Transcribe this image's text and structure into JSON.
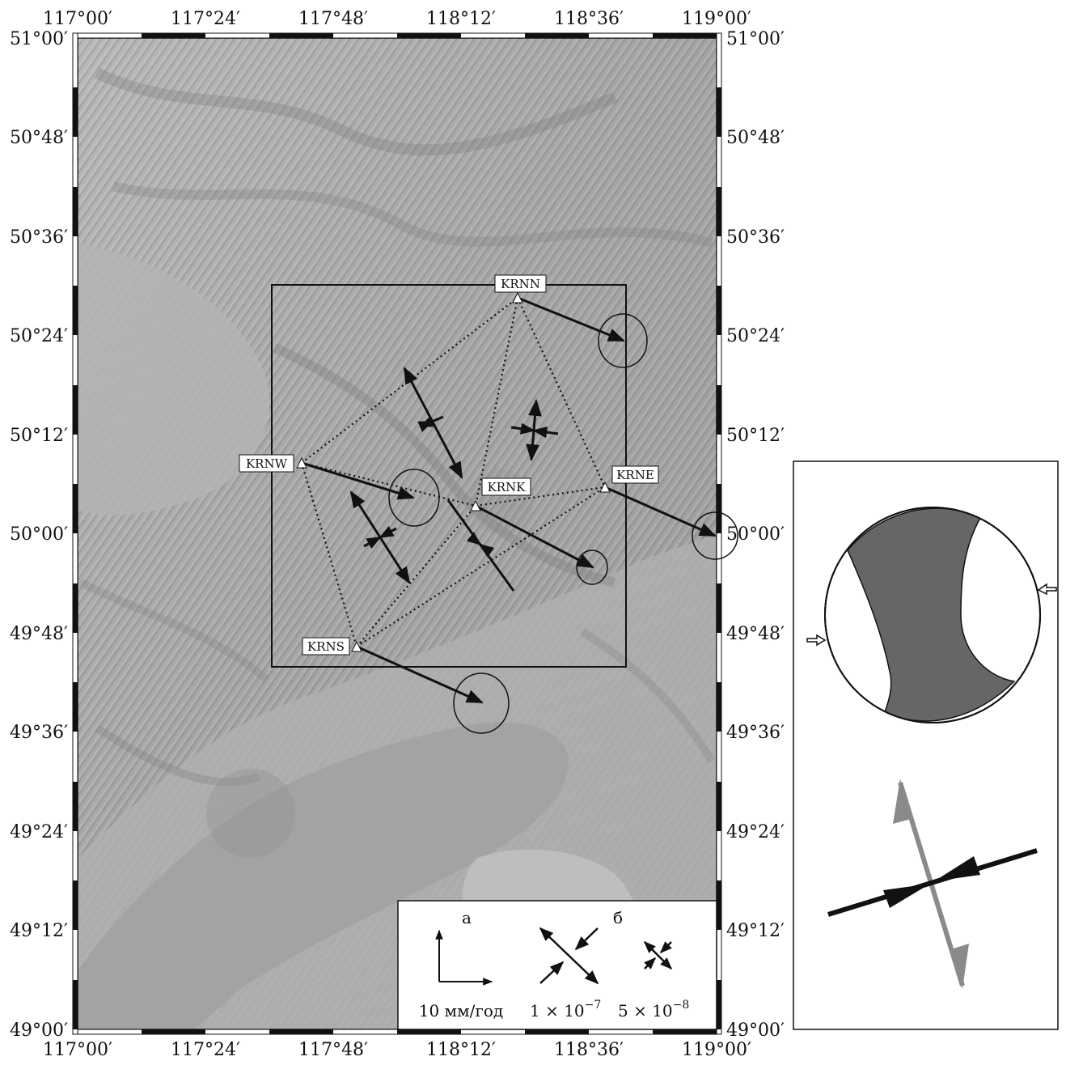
{
  "map": {
    "lon_labels": [
      "117°00′",
      "117°24′",
      "117°48′",
      "118°12′",
      "118°36′",
      "119°00′"
    ],
    "lat_labels": [
      "51°00′",
      "50°48′",
      "50°36′",
      "50°24′",
      "50°12′",
      "50°00′",
      "49°48′",
      "49°36′",
      "49°24′",
      "49°12′",
      "49°00′"
    ],
    "stations": [
      {
        "code": "KRNN"
      },
      {
        "code": "KRNW"
      },
      {
        "code": "KRNE"
      },
      {
        "code": "KRNK"
      },
      {
        "code": "KRNS"
      }
    ],
    "colors": {
      "relief": "#a8a8a8",
      "relief_dark": "#8c8c8c",
      "relief_light": "#c4c4c4",
      "frame": "#111111",
      "vector": "#111111"
    }
  },
  "legend": {
    "label_a": "а",
    "label_b": "б",
    "velocity_label": "10 мм/год",
    "strain_large_base": "1 × 10",
    "strain_large_exp": "−7",
    "strain_small_base": "5 × 10",
    "strain_small_exp": "−8"
  },
  "mechanism_panel": {
    "colors": {
      "compressional_fill": "#666666",
      "extension_axis": "#8a8a8a",
      "compression_axis": "#111111"
    }
  }
}
